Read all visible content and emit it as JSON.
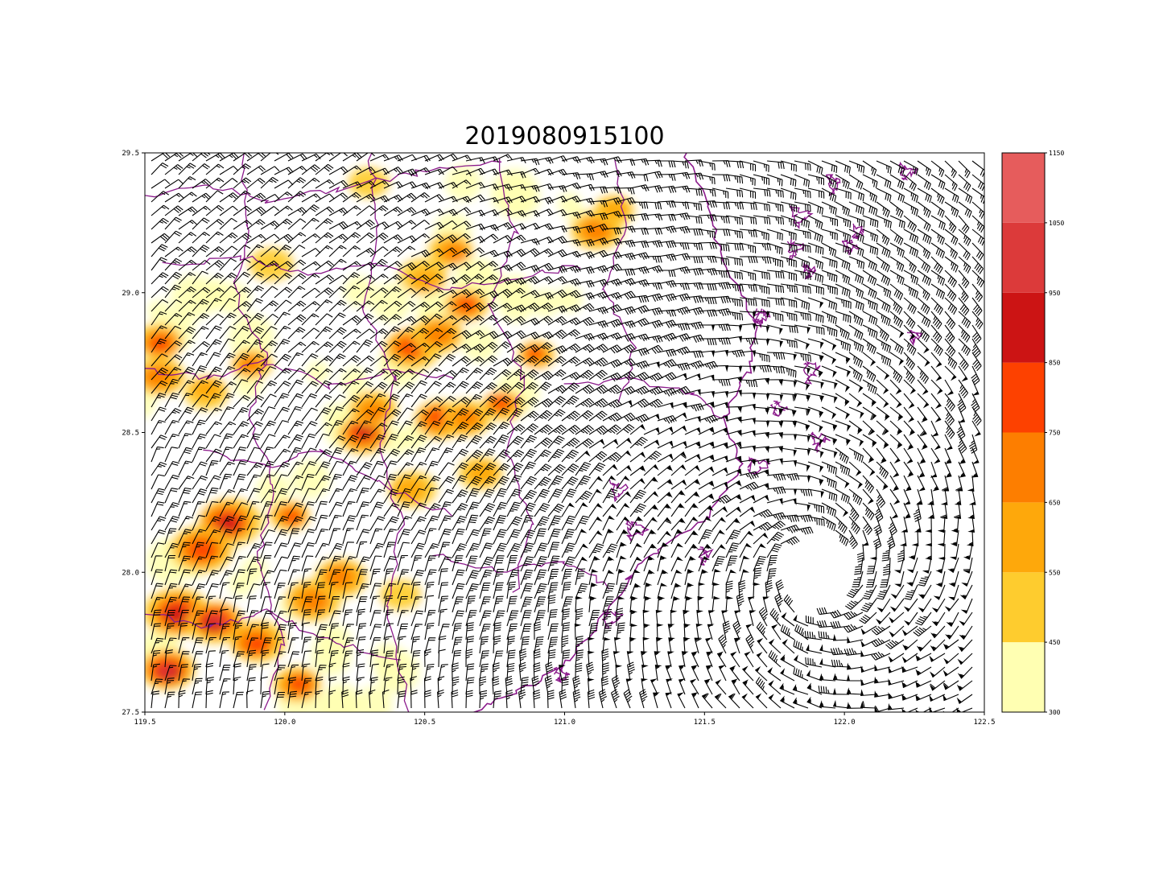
{
  "title": "2019080915100",
  "map": {
    "lon_range": [
      119.5,
      122.5
    ],
    "lat_range": [
      27.5,
      29.5
    ],
    "lon_ticks": [
      "119.5",
      "120.0",
      "120.5",
      "121.0",
      "121.5",
      "122.0",
      "122.5"
    ],
    "lat_ticks": [
      "27.5",
      "28.0",
      "28.5",
      "29.0",
      "29.5"
    ],
    "field": "terrain height, filled contours",
    "overlay": "wind barbs",
    "boundary_color": "#8b1a8b",
    "land_extent": "west of about 121.6E"
  },
  "colorbar": {
    "levels": [
      "300",
      "450",
      "550",
      "650",
      "750",
      "850",
      "950",
      "1050",
      "1150"
    ],
    "colors": [
      "#ffffb2",
      "#fecc2e",
      "#fea80b",
      "#fd7e00",
      "#fd4100",
      "#cc1414",
      "#dc3a3a",
      "#e65c5c"
    ]
  },
  "typhoon_center": {
    "lon": 121.9,
    "lat": 28.0
  }
}
